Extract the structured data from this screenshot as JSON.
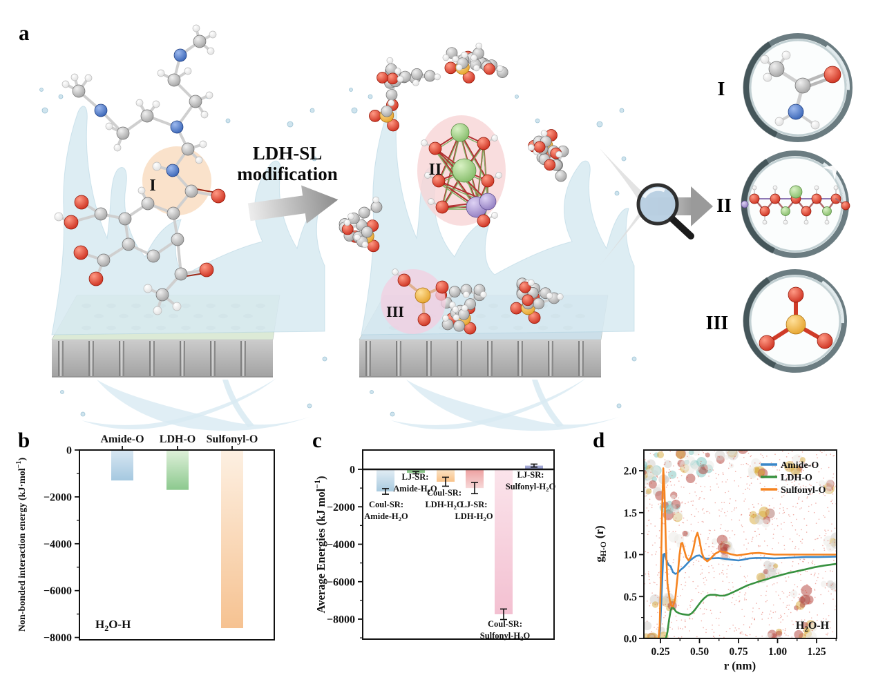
{
  "panels": {
    "a": "a",
    "b": "b",
    "c": "c",
    "d": "d"
  },
  "panel_a": {
    "modification_line1": "LDH-SL",
    "modification_line2": "modification",
    "site_labels": {
      "I": "I",
      "II": "II",
      "III": "III"
    },
    "site_colors": {
      "I": "#c8601f",
      "II": "#d5232d",
      "III": "#ea1f8a"
    },
    "inset_labels": {
      "I": "I",
      "II": "II",
      "III": "III"
    }
  },
  "chart_data": [
    {
      "panel": "b",
      "type": "bar",
      "categories": [
        "Amide-O",
        "LDH-O",
        "Sulfonyl-O"
      ],
      "values": [
        -1300,
        -1700,
        -7600
      ],
      "ylabel": "Non-bonded interaction energy (kJ·mol⁻¹)",
      "yticks": [
        0,
        -2000,
        -4000,
        -6000,
        -8000
      ],
      "ylim": [
        -8100,
        0
      ],
      "grid": false,
      "annotation": "H₂O-H",
      "bar_colors": [
        [
          "#d8e7f2",
          "#a5c8e0"
        ],
        [
          "#dff0da",
          "#8cc98e"
        ],
        [
          "#fdf0e2",
          "#f6c291"
        ]
      ]
    },
    {
      "panel": "c",
      "type": "bar",
      "ylabel": "Average Energies (kJ mol⁻¹)",
      "yticks": [
        0,
        -2000,
        -4000,
        -6000,
        -8000
      ],
      "ylim": [
        -9100,
        1030
      ],
      "grid": false,
      "bars": [
        {
          "label_line1": "Coul-SR:",
          "label_line2": "Amide-H₂O",
          "value": -1180,
          "error": 150,
          "colors": [
            "#e3eef5",
            "#a9cadf"
          ]
        },
        {
          "label_line1": "LJ-SR:",
          "label_line2": "Amide-H₂O",
          "value": -180,
          "error": 60,
          "colors": [
            "#9ed19c",
            "#7fc07f"
          ]
        },
        {
          "label_line1": "Coul-SR:",
          "label_line2": "LDH-H₂O",
          "value": -660,
          "error": 240,
          "colors": [
            "#fce4c6",
            "#f8c188"
          ]
        },
        {
          "label_line1": "LJ-SR:",
          "label_line2": "LDH-H₂O",
          "value": -1000,
          "error": 300,
          "colors": [
            "#eda0a0",
            "#f7d8d8"
          ]
        },
        {
          "label_line1": "Coul-SR:",
          "label_line2": "Sulfonyl-H₂O",
          "value": -7740,
          "error": 280,
          "colors": [
            "#fbe4eb",
            "#f3c0d1"
          ]
        },
        {
          "label_line1": "LJ-SR:",
          "label_line2": "Sulfonyl-H₂O",
          "value": 200,
          "error": 80,
          "colors": [
            "#a9aed8",
            "#9099cd"
          ]
        }
      ]
    },
    {
      "panel": "d",
      "type": "line",
      "xlabel": "r (nm)",
      "ylabel_main": "g",
      "ylabel_sub": "H-O",
      "ylabel_tail": " (r)",
      "xticks": [
        "0.25",
        "0.50",
        "0.75",
        "1.00",
        "1.25"
      ],
      "yticks": [
        "0.0",
        "0.5",
        "1.0",
        "1.5",
        "2.0"
      ],
      "xlim": [
        0.143,
        1.378
      ],
      "ylim": [
        0,
        2.25
      ],
      "grid": false,
      "legend_position": "top-right",
      "annotation": "H₂O-H",
      "series": [
        {
          "name": "Amide-O",
          "color": "#3a87c8",
          "points": [
            [
              0.143,
              0
            ],
            [
              0.24,
              0
            ],
            [
              0.248,
              0.1
            ],
            [
              0.258,
              0.55
            ],
            [
              0.268,
              1.0
            ],
            [
              0.276,
              1.01
            ],
            [
              0.285,
              0.95
            ],
            [
              0.3,
              0.88
            ],
            [
              0.315,
              0.86
            ],
            [
              0.33,
              0.79
            ],
            [
              0.345,
              0.77
            ],
            [
              0.36,
              0.78
            ],
            [
              0.38,
              0.82
            ],
            [
              0.4,
              0.85
            ],
            [
              0.42,
              0.89
            ],
            [
              0.44,
              0.93
            ],
            [
              0.46,
              0.96
            ],
            [
              0.48,
              0.985
            ],
            [
              0.5,
              0.99
            ],
            [
              0.52,
              0.965
            ],
            [
              0.545,
              0.95
            ],
            [
              0.58,
              0.955
            ],
            [
              0.62,
              0.96
            ],
            [
              0.66,
              0.95
            ],
            [
              0.7,
              0.94
            ],
            [
              0.75,
              0.93
            ],
            [
              0.78,
              0.94
            ],
            [
              0.82,
              0.955
            ],
            [
              0.86,
              0.96
            ],
            [
              0.92,
              0.96
            ],
            [
              0.98,
              0.955
            ],
            [
              1.04,
              0.96
            ],
            [
              1.1,
              0.965
            ],
            [
              1.18,
              0.97
            ],
            [
              1.26,
              0.97
            ],
            [
              1.378,
              0.975
            ]
          ]
        },
        {
          "name": "LDH-O",
          "color": "#37913f",
          "points": [
            [
              0.143,
              0
            ],
            [
              0.285,
              0
            ],
            [
              0.295,
              0.08
            ],
            [
              0.305,
              0.22
            ],
            [
              0.315,
              0.33
            ],
            [
              0.325,
              0.375
            ],
            [
              0.335,
              0.36
            ],
            [
              0.35,
              0.32
            ],
            [
              0.37,
              0.3
            ],
            [
              0.39,
              0.29
            ],
            [
              0.41,
              0.285
            ],
            [
              0.43,
              0.28
            ],
            [
              0.45,
              0.3
            ],
            [
              0.47,
              0.34
            ],
            [
              0.49,
              0.39
            ],
            [
              0.51,
              0.44
            ],
            [
              0.53,
              0.48
            ],
            [
              0.55,
              0.51
            ],
            [
              0.57,
              0.52
            ],
            [
              0.6,
              0.52
            ],
            [
              0.63,
              0.51
            ],
            [
              0.66,
              0.51
            ],
            [
              0.69,
              0.53
            ],
            [
              0.73,
              0.565
            ],
            [
              0.77,
              0.6
            ],
            [
              0.81,
              0.635
            ],
            [
              0.85,
              0.66
            ],
            [
              0.89,
              0.685
            ],
            [
              0.93,
              0.705
            ],
            [
              0.97,
              0.73
            ],
            [
              1.02,
              0.755
            ],
            [
              1.07,
              0.78
            ],
            [
              1.12,
              0.8
            ],
            [
              1.18,
              0.825
            ],
            [
              1.24,
              0.85
            ],
            [
              1.3,
              0.87
            ],
            [
              1.378,
              0.89
            ]
          ]
        },
        {
          "name": "Sulfonyl-O",
          "color": "#f5831f",
          "points": [
            [
              0.143,
              0
            ],
            [
              0.238,
              0
            ],
            [
              0.245,
              0.15
            ],
            [
              0.252,
              0.7
            ],
            [
              0.26,
              1.5
            ],
            [
              0.268,
              2.03
            ],
            [
              0.276,
              1.75
            ],
            [
              0.285,
              1.1
            ],
            [
              0.295,
              0.65
            ],
            [
              0.31,
              0.45
            ],
            [
              0.32,
              0.39
            ],
            [
              0.33,
              0.38
            ],
            [
              0.345,
              0.48
            ],
            [
              0.36,
              0.75
            ],
            [
              0.372,
              1.0
            ],
            [
              0.382,
              1.13
            ],
            [
              0.39,
              1.14
            ],
            [
              0.4,
              1.07
            ],
            [
              0.415,
              0.97
            ],
            [
              0.43,
              0.93
            ],
            [
              0.445,
              0.97
            ],
            [
              0.46,
              1.06
            ],
            [
              0.475,
              1.2
            ],
            [
              0.487,
              1.26
            ],
            [
              0.5,
              1.17
            ],
            [
              0.515,
              1.02
            ],
            [
              0.53,
              0.95
            ],
            [
              0.55,
              0.92
            ],
            [
              0.57,
              0.95
            ],
            [
              0.6,
              1.01
            ],
            [
              0.63,
              1.04
            ],
            [
              0.66,
              1.03
            ],
            [
              0.7,
              1.005
            ],
            [
              0.74,
              0.99
            ],
            [
              0.78,
              1.0
            ],
            [
              0.83,
              1.015
            ],
            [
              0.88,
              1.02
            ],
            [
              0.93,
              1.01
            ],
            [
              0.98,
              1.0
            ],
            [
              1.05,
              1.0
            ],
            [
              1.15,
              1.0
            ],
            [
              1.25,
              1.0
            ],
            [
              1.378,
              1.0
            ]
          ]
        }
      ]
    }
  ]
}
